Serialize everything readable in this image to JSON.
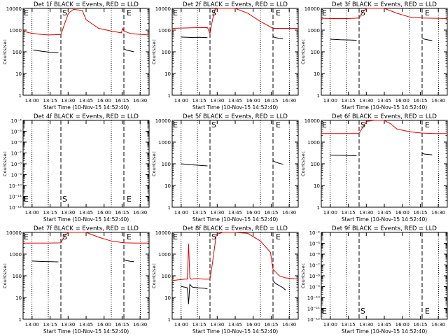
{
  "page_title": "",
  "colors": {
    "events": "#000000",
    "lld": "#dd0000",
    "axis": "#000000"
  },
  "common": {
    "xlabel": "Start Time (10-Nov-15 14:52:40)",
    "ylabel": "Counts/sec",
    "xticks": [
      "13:00",
      "13:15",
      "13:30",
      "13:45",
      "16:00",
      "16:15",
      "16:30"
    ],
    "marker_s": "S",
    "marker_e": "E"
  },
  "chart_data": [
    {
      "title": "Det 1f BLACK = Events, RED = LLD",
      "type": "line",
      "ylog": true,
      "ylim": [
        1,
        10000
      ],
      "yticks": [
        "1",
        "10",
        "100",
        "1000",
        "10000"
      ],
      "markers": {
        "E_left": 0.0,
        "S": 0.3,
        "E": 0.8
      },
      "series": [
        {
          "name": "LLD",
          "color": "#dd0000",
          "x": [
            0.0,
            0.05,
            0.12,
            0.2,
            0.3,
            0.31,
            0.33,
            0.36,
            0.4,
            0.47,
            0.5,
            0.6,
            0.7,
            0.78,
            0.79,
            0.8,
            0.85,
            0.9,
            0.95,
            1.0
          ],
          "y": [
            900,
            750,
            650,
            600,
            620,
            900,
            2000,
            6000,
            9000,
            8000,
            3000,
            1200,
            900,
            750,
            1200,
            900,
            700,
            650,
            620,
            600
          ]
        },
        {
          "name": "Events",
          "color": "#000000",
          "x": [
            0.08,
            0.15,
            0.22,
            0.28
          ],
          "y": [
            120,
            105,
            95,
            90
          ]
        },
        {
          "name": "Events",
          "color": "#000000",
          "x": [
            0.8,
            0.82,
            0.85,
            0.88
          ],
          "y": [
            140,
            120,
            110,
            100
          ]
        }
      ]
    },
    {
      "title": "Det 2f BLACK = Events, RED = LLD",
      "type": "line",
      "ylog": true,
      "ylim": [
        1,
        10000
      ],
      "yticks": [
        "1",
        "10",
        "100",
        "1000",
        "10000"
      ],
      "markers": {
        "E_left": 0.0,
        "S": 0.3,
        "E": 0.8
      },
      "series": [
        {
          "name": "LLD",
          "color": "#dd0000",
          "x": [
            0.0,
            0.1,
            0.2,
            0.28,
            0.3,
            0.32,
            0.34,
            0.36,
            0.4,
            0.5,
            0.6,
            0.7,
            0.78,
            0.8,
            0.9,
            1.0
          ],
          "y": [
            1200,
            1250,
            1300,
            1300,
            700,
            3000,
            9000,
            10000,
            10000,
            10000,
            6000,
            2500,
            1400,
            1200,
            1200,
            1200
          ]
        },
        {
          "name": "Events",
          "color": "#000000",
          "x": [
            0.07,
            0.15,
            0.22,
            0.28
          ],
          "y": [
            480,
            460,
            470,
            450
          ]
        },
        {
          "name": "Events",
          "color": "#000000",
          "x": [
            0.8,
            0.82,
            0.85,
            0.88
          ],
          "y": [
            500,
            450,
            420,
            400
          ]
        }
      ]
    },
    {
      "title": "Det 3f BLACK = Events, RED = LLD",
      "type": "line",
      "ylog": true,
      "ylim": [
        1,
        10000
      ],
      "yticks": [
        "1",
        "10",
        "100",
        "1000",
        "10000"
      ],
      "markers": {
        "E_left": 0.0,
        "S": 0.3,
        "E": 0.8
      },
      "series": [
        {
          "name": "LLD",
          "color": "#dd0000",
          "x": [
            0.0,
            0.1,
            0.2,
            0.3,
            0.33,
            0.36,
            0.4,
            0.5,
            0.6,
            0.7,
            0.8,
            0.9,
            1.0
          ],
          "y": [
            3500,
            3400,
            3400,
            3600,
            7000,
            12000,
            12000,
            11000,
            6000,
            4000,
            3600,
            3500,
            3400
          ]
        },
        {
          "name": "Events",
          "color": "#000000",
          "x": [
            0.07,
            0.15,
            0.22,
            0.28
          ],
          "y": [
            380,
            360,
            350,
            340
          ]
        },
        {
          "name": "Events",
          "color": "#000000",
          "x": [
            0.8,
            0.82,
            0.85,
            0.88
          ],
          "y": [
            420,
            380,
            350,
            330
          ]
        }
      ]
    },
    {
      "title": "Det 4f BLACK = Events, RED = LLD",
      "type": "line",
      "ylog": true,
      "ylim": [
        1e-12,
        0.0001
      ],
      "yticks": [
        "10⁻¹²",
        "10⁻¹¹",
        "10⁻¹⁰",
        "10⁻⁹",
        "10⁻⁸",
        "10⁻⁷",
        "10⁻⁶",
        "10⁻⁵",
        "10⁻⁴"
      ],
      "markers": {
        "E_left": 0.0,
        "S": 0.3,
        "E": 0.8
      },
      "series": []
    },
    {
      "title": "Det 5f BLACK = Events, RED = LLD",
      "type": "line",
      "ylog": true,
      "ylim": [
        1,
        10000
      ],
      "yticks": [
        "1",
        "10",
        "100",
        "1000",
        "10000"
      ],
      "markers": {
        "E_left": 0.0,
        "S": 0.3,
        "E": 0.8
      },
      "series": [
        {
          "name": "Events",
          "color": "#000000",
          "x": [
            0.07,
            0.15,
            0.22,
            0.28
          ],
          "y": [
            100,
            90,
            85,
            80
          ]
        },
        {
          "name": "Events",
          "color": "#000000",
          "x": [
            0.8,
            0.82,
            0.85,
            0.88
          ],
          "y": [
            140,
            120,
            105,
            95
          ]
        }
      ]
    },
    {
      "title": "Det 6f BLACK = Events, RED = LLD",
      "type": "line",
      "ylog": true,
      "ylim": [
        1,
        10000
      ],
      "yticks": [
        "1",
        "10",
        "100",
        "1000",
        "10000"
      ],
      "markers": {
        "E_left": 0.0,
        "S": 0.3,
        "E": 0.8
      },
      "series": [
        {
          "name": "LLD",
          "color": "#dd0000",
          "x": [
            0.0,
            0.1,
            0.2,
            0.3,
            0.33,
            0.36,
            0.42,
            0.5,
            0.55,
            0.6,
            0.7,
            0.8,
            0.9,
            1.0
          ],
          "y": [
            2500,
            2500,
            2500,
            2500,
            5000,
            9000,
            12000,
            12000,
            7000,
            4000,
            3000,
            2600,
            2500,
            2500
          ]
        },
        {
          "name": "Events",
          "color": "#000000",
          "x": [
            0.07,
            0.15,
            0.22,
            0.28
          ],
          "y": [
            250,
            245,
            240,
            235
          ]
        },
        {
          "name": "Events",
          "color": "#000000",
          "x": [
            0.8,
            0.82,
            0.85,
            0.88
          ],
          "y": [
            300,
            280,
            270,
            260
          ]
        }
      ]
    },
    {
      "title": "Det 7f BLACK = Events, RED = LLD",
      "type": "line",
      "ylog": true,
      "ylim": [
        1,
        10000
      ],
      "yticks": [
        "1",
        "10",
        "100",
        "1000",
        "10000"
      ],
      "markers": {
        "E_left": 0.0,
        "S": 0.3,
        "E": 0.8
      },
      "series": [
        {
          "name": "LLD",
          "color": "#dd0000",
          "x": [
            0.0,
            0.1,
            0.2,
            0.3,
            0.33,
            0.36,
            0.4,
            0.5,
            0.6,
            0.7,
            0.8,
            0.9,
            1.0
          ],
          "y": [
            3200,
            3200,
            3200,
            3300,
            7000,
            12000,
            12000,
            11000,
            6000,
            4000,
            3300,
            3200,
            3200
          ]
        },
        {
          "name": "Events",
          "color": "#000000",
          "x": [
            0.07,
            0.15,
            0.22,
            0.28
          ],
          "y": [
            480,
            460,
            450,
            440
          ]
        },
        {
          "name": "Events",
          "color": "#000000",
          "x": [
            0.8,
            0.82,
            0.85,
            0.88
          ],
          "y": [
            550,
            500,
            470,
            450
          ]
        }
      ]
    },
    {
      "title": "Det 8f BLACK = Events, RED = LLD",
      "type": "line",
      "ylog": true,
      "ylim": [
        1,
        10000
      ],
      "yticks": [
        "1",
        "10",
        "100",
        "1000",
        "10000"
      ],
      "markers": {
        "E_left": 0.0,
        "S": 0.3,
        "E": 0.8
      },
      "series": [
        {
          "name": "LLD",
          "color": "#dd0000",
          "x": [
            0.0,
            0.05,
            0.1,
            0.12,
            0.13,
            0.14,
            0.15,
            0.2,
            0.25,
            0.3,
            0.32,
            0.35,
            0.4,
            0.5,
            0.6,
            0.7,
            0.78,
            0.8,
            0.85,
            0.9,
            1.0
          ],
          "y": [
            60,
            65,
            70,
            70,
            3000,
            80,
            70,
            75,
            70,
            70,
            400,
            8000,
            12000,
            12000,
            9000,
            4000,
            1200,
            200,
            100,
            80,
            70
          ]
        },
        {
          "name": "Events",
          "color": "#000000",
          "x": [
            0.07,
            0.1,
            0.12,
            0.13,
            0.14,
            0.16,
            0.2,
            0.25,
            0.28
          ],
          "y": [
            32,
            30,
            28,
            5,
            40,
            30,
            28,
            27,
            25
          ]
        },
        {
          "name": "Events",
          "color": "#000000",
          "x": [
            0.8,
            0.82,
            0.85,
            0.88,
            0.9
          ],
          "y": [
            60,
            45,
            35,
            28,
            22
          ]
        }
      ]
    },
    {
      "title": "Det 9f BLACK = Events, RED = LLD",
      "type": "line",
      "ylog": true,
      "ylim": [
        1e-12,
        0.0001
      ],
      "yticks": [
        "10⁻¹²",
        "10⁻¹¹",
        "10⁻¹⁰",
        "10⁻⁹",
        "10⁻⁸",
        "10⁻⁷",
        "10⁻⁶",
        "10⁻⁵",
        "10⁻⁴"
      ],
      "markers": {
        "E_left": 0.0,
        "S": 0.3,
        "E": 0.8
      },
      "series": []
    }
  ]
}
